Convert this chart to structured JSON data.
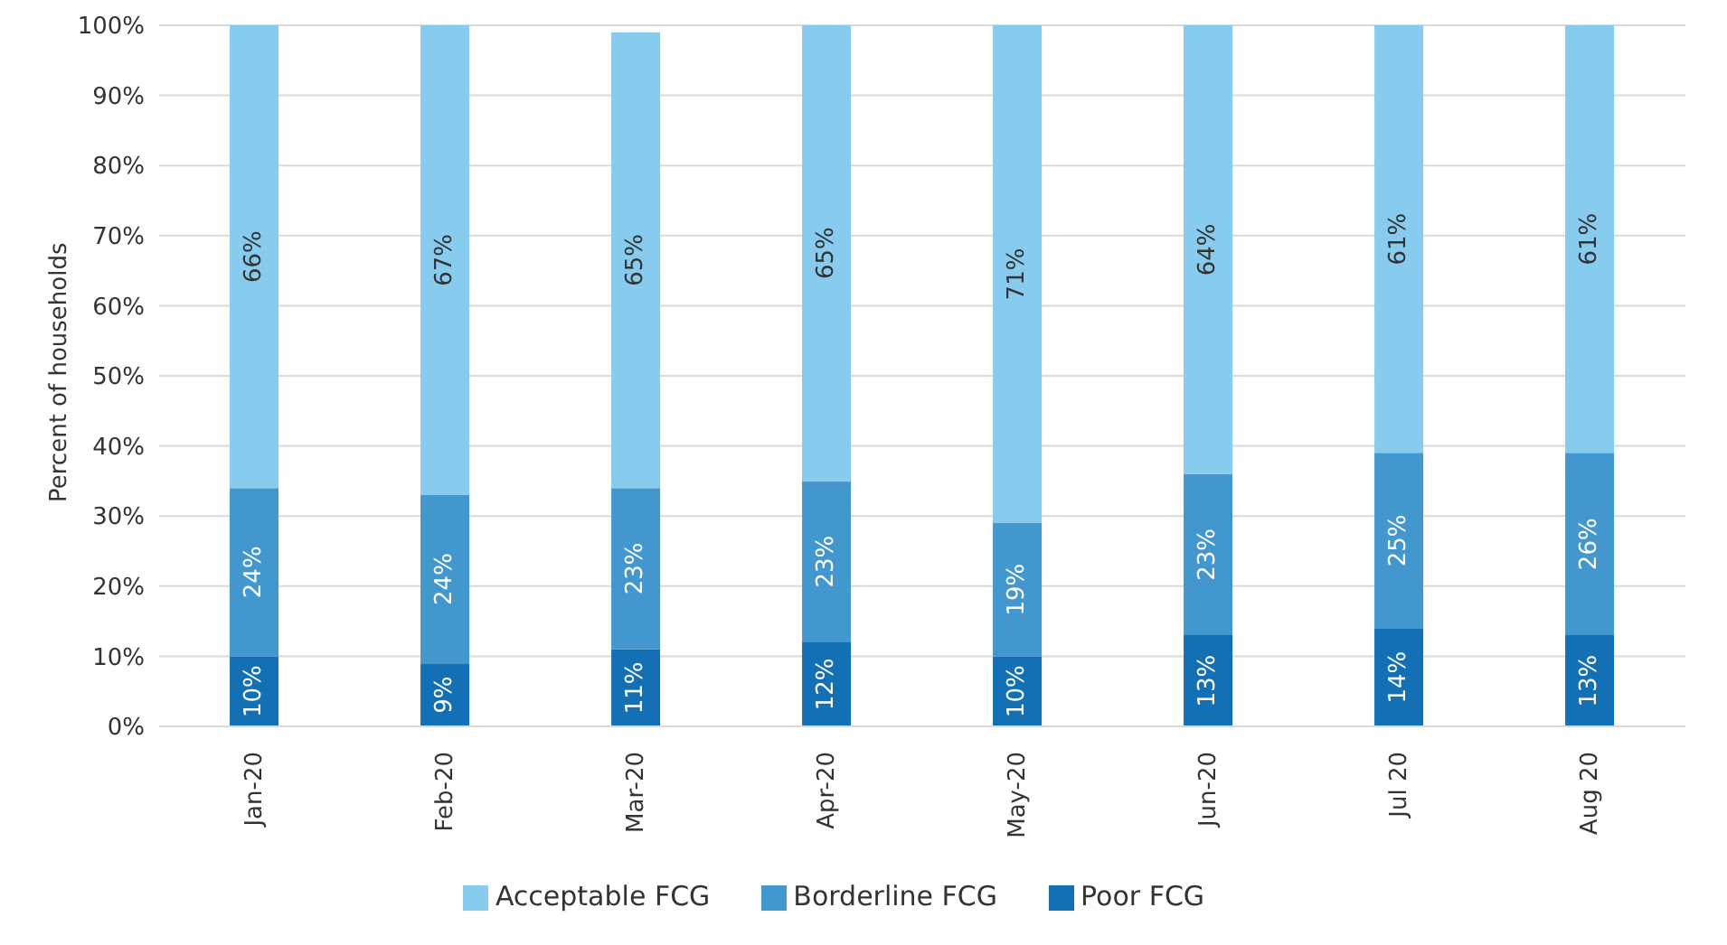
{
  "chart_data": {
    "type": "bar",
    "stacked": true,
    "ylabel": "Percent of households",
    "categories": [
      "Jan-20",
      "Feb-20",
      "Mar-20",
      "Apr-20",
      "May-20",
      "Jun-20",
      "Jul 20",
      "Aug 20"
    ],
    "series": [
      {
        "name": "Poor FCG",
        "color": "#1470b5",
        "values": [
          10,
          9,
          11,
          12,
          10,
          13,
          14,
          13
        ],
        "value_labels": [
          "10%",
          "9%",
          "11%",
          "12%",
          "10%",
          "13%",
          "14%",
          "13%"
        ]
      },
      {
        "name": "Borderline FCG",
        "color": "#4297cf",
        "values": [
          24,
          24,
          23,
          23,
          19,
          23,
          25,
          26
        ],
        "value_labels": [
          "24%",
          "24%",
          "23%",
          "23%",
          "19%",
          "23%",
          "25%",
          "26%"
        ]
      },
      {
        "name": "Acceptable FCG",
        "color": "#87cbee",
        "values": [
          66,
          67,
          65,
          65,
          71,
          64,
          61,
          61
        ],
        "value_labels": [
          "66%",
          "67%",
          "65%",
          "65%",
          "71%",
          "64%",
          "61%",
          "61%"
        ]
      }
    ],
    "ylim": [
      0,
      100
    ],
    "yticks": [
      {
        "value": 0,
        "label": "0%"
      },
      {
        "value": 10,
        "label": "10%"
      },
      {
        "value": 20,
        "label": "20%"
      },
      {
        "value": 30,
        "label": "30%"
      },
      {
        "value": 40,
        "label": "40%"
      },
      {
        "value": 50,
        "label": "50%"
      },
      {
        "value": 60,
        "label": "60%"
      },
      {
        "value": 70,
        "label": "70%"
      },
      {
        "value": 80,
        "label": "80%"
      },
      {
        "value": 90,
        "label": "90%"
      },
      {
        "value": 100,
        "label": "100%"
      }
    ],
    "grid": "y",
    "legend": "bottom"
  }
}
